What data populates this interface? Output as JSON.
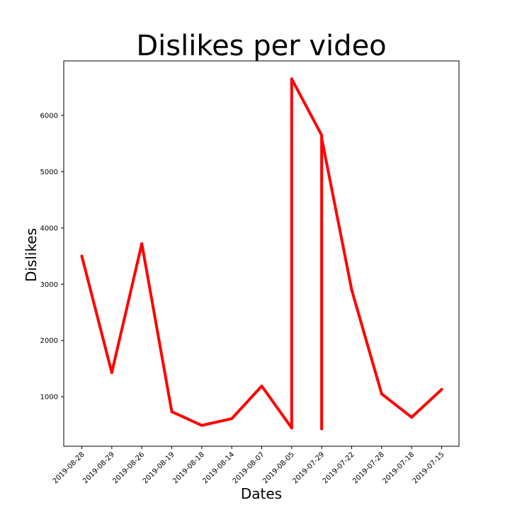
{
  "chart_data": {
    "type": "line",
    "title": "Dislikes per video",
    "xlabel": "Dates",
    "ylabel": "Dislikes",
    "categories": [
      "2019-08-28",
      "2019-08-29",
      "2019-08-26",
      "2019-08-19",
      "2019-08-18",
      "2019-08-14",
      "2019-08-07",
      "2019-08-05",
      "2019-07-29",
      "2019-07-22",
      "2019-07-28",
      "2019-07-18",
      "2019-07-15"
    ],
    "series": [
      {
        "name": "Dislikes",
        "color": "#ff0000",
        "points": [
          {
            "category": "2019-08-28",
            "value": 3500
          },
          {
            "category": "2019-08-29",
            "value": 1430
          },
          {
            "category": "2019-08-26",
            "value": 3720
          },
          {
            "category": "2019-08-19",
            "value": 735
          },
          {
            "category": "2019-08-18",
            "value": 490
          },
          {
            "category": "2019-08-14",
            "value": 610
          },
          {
            "category": "2019-08-07",
            "value": 1190
          },
          {
            "category": "2019-08-05",
            "value": 445
          },
          {
            "category": "2019-08-05",
            "value": 6650
          },
          {
            "category": "2019-07-29",
            "value": 5650
          },
          {
            "category": "2019-07-29",
            "value": 430
          },
          {
            "category": "2019-07-29",
            "value": 5600
          },
          {
            "category": "2019-07-22",
            "value": 2900
          },
          {
            "category": "2019-07-28",
            "value": 1050
          },
          {
            "category": "2019-07-18",
            "value": 635
          },
          {
            "category": "2019-07-15",
            "value": 1130
          }
        ]
      }
    ],
    "yticks": [
      1000,
      2000,
      3000,
      4000,
      5000,
      6000
    ],
    "yticklabels": [
      "1000",
      "2000",
      "3000",
      "4000",
      "5000",
      "6000"
    ],
    "ylim": [
      120,
      6970
    ],
    "grid": false,
    "legend": "none"
  }
}
